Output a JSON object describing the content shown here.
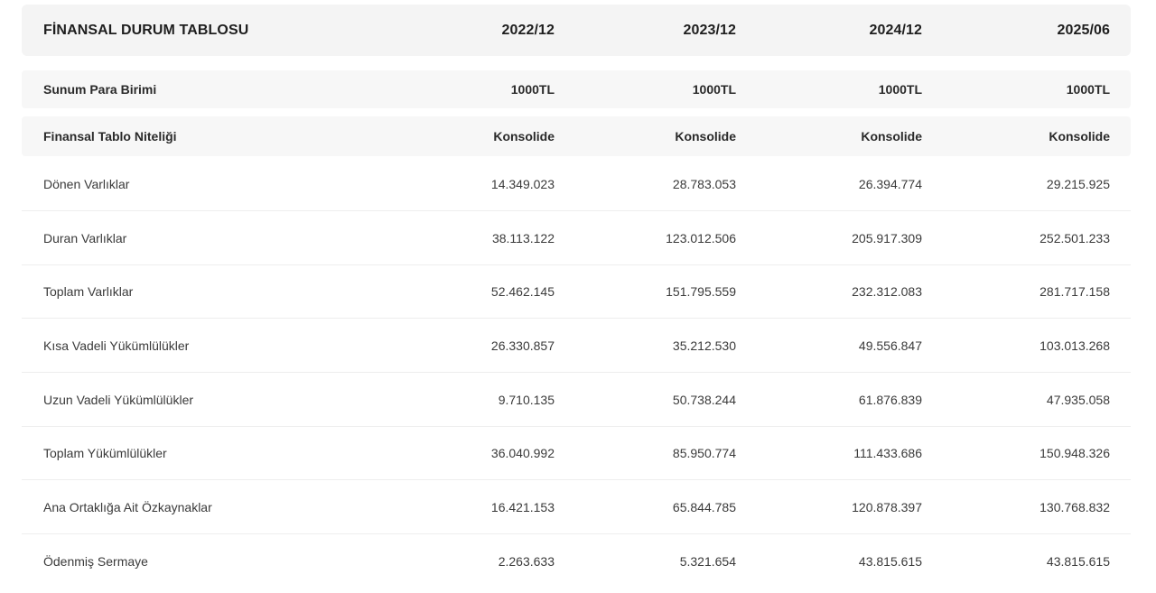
{
  "table": {
    "title": "FİNANSAL DURUM TABLOSU",
    "periods": [
      "2022/12",
      "2023/12",
      "2024/12",
      "2025/06"
    ],
    "meta_rows": [
      {
        "label": "Sunum Para Birimi",
        "values": [
          "1000TL",
          "1000TL",
          "1000TL",
          "1000TL"
        ]
      },
      {
        "label": "Finansal Tablo Niteliği",
        "values": [
          "Konsolide",
          "Konsolide",
          "Konsolide",
          "Konsolide"
        ]
      }
    ],
    "rows": [
      {
        "label": "Dönen Varlıklar",
        "values": [
          "14.349.023",
          "28.783.053",
          "26.394.774",
          "29.215.925"
        ]
      },
      {
        "label": "Duran Varlıklar",
        "values": [
          "38.113.122",
          "123.012.506",
          "205.917.309",
          "252.501.233"
        ]
      },
      {
        "label": "Toplam Varlıklar",
        "values": [
          "52.462.145",
          "151.795.559",
          "232.312.083",
          "281.717.158"
        ]
      },
      {
        "label": "Kısa Vadeli Yükümlülükler",
        "values": [
          "26.330.857",
          "35.212.530",
          "49.556.847",
          "103.013.268"
        ]
      },
      {
        "label": "Uzun Vadeli Yükümlülükler",
        "values": [
          "9.710.135",
          "50.738.244",
          "61.876.839",
          "47.935.058"
        ]
      },
      {
        "label": "Toplam Yükümlülükler",
        "values": [
          "36.040.992",
          "85.950.774",
          "111.433.686",
          "150.948.326"
        ]
      },
      {
        "label": "Ana Ortaklığa Ait Özkaynaklar",
        "values": [
          "16.421.153",
          "65.844.785",
          "120.878.397",
          "130.768.832"
        ]
      },
      {
        "label": "Ödenmiş Sermaye",
        "values": [
          "2.263.633",
          "5.321.654",
          "43.815.615",
          "43.815.615"
        ]
      }
    ]
  }
}
